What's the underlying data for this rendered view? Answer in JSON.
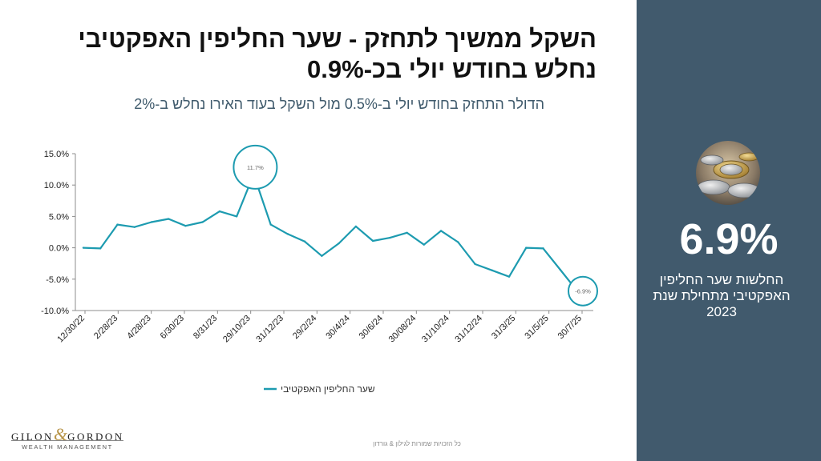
{
  "title": "השקל ממשיך לתחזק - שער החליפין האפקטיבי נחלש בחודש יולי בכ-0.9%",
  "subtitle": "הדולר התחזק בחודש יולי ב-0.5% מול השקל בעוד האירו נחלש ב-2%",
  "side_panel": {
    "stat": "6.9%",
    "description": "החלשות שער החליפין האפקטיבי מתחילת שנת 2023",
    "image": "coins-photo"
  },
  "logo": {
    "name_left": "GILON",
    "ampersand": "&",
    "name_right": "GORDON",
    "tagline": "WEALTH MANAGEMENT"
  },
  "copyright": "כל הזכויות שמורות לגילון & גורדון",
  "colors": {
    "series": "#1d9bb0",
    "panel": "#415a6d",
    "subtitle": "#3f5a6c",
    "accent_gold": "#b8954a"
  },
  "chart_data": {
    "type": "line",
    "title": "",
    "xlabel": "",
    "ylabel": "",
    "ylim": [
      -10,
      15
    ],
    "yticks": [
      15,
      10,
      5,
      0,
      -5,
      -10
    ],
    "ytick_labels": [
      "15.0%",
      "10.0%",
      "5.0%",
      "0.0%",
      "-5.0%",
      "-10.0%"
    ],
    "xtick_labels": [
      "12/30/22",
      "2/28/23",
      "4/28/23",
      "6/30/23",
      "8/31/23",
      "29/10/23",
      "31/12/23",
      "29/2/24",
      "30/4/24",
      "30/6/24",
      "30/08/24",
      "31/10/24",
      "31/12/24",
      "31/3/25",
      "31/5/25",
      "30/7/25"
    ],
    "grid": false,
    "legend": "bottom",
    "series": [
      {
        "name": "שער החליפין האפקטיבי",
        "values": [
          0.0,
          -0.1,
          3.7,
          3.3,
          4.1,
          4.6,
          3.5,
          4.1,
          5.8,
          5.0,
          11.7,
          3.7,
          2.2,
          1.0,
          -1.3,
          0.7,
          3.4,
          1.1,
          1.6,
          2.4,
          0.5,
          2.7,
          0.9,
          -2.6,
          -3.6,
          -4.6,
          0.0,
          -0.1,
          -3.5,
          -6.9
        ]
      }
    ],
    "annotations": [
      {
        "point_index": 10,
        "label": "11.7%"
      },
      {
        "point_index": 29,
        "label": "-6.9%"
      }
    ]
  }
}
